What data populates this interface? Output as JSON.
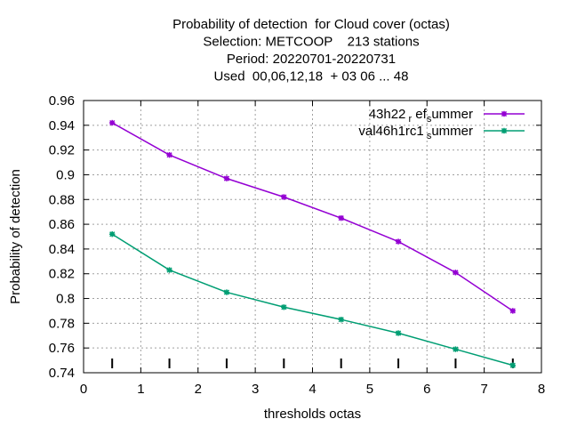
{
  "chart_data": {
    "type": "line",
    "title_lines": [
      "Probability of detection  for Cloud cover (octas)",
      "Selection: METCOOP    213 stations",
      "Period: 20220701-20220731",
      "Used  00,06,12,18  + 03 06 ... 48"
    ],
    "xlabel": "thresholds octas",
    "ylabel": "Probability of detection",
    "xlim": [
      0,
      8
    ],
    "ylim": [
      0.74,
      0.96
    ],
    "x_ticks": [
      0,
      1,
      2,
      3,
      4,
      5,
      6,
      7,
      8
    ],
    "y_ticks": [
      0.74,
      0.76,
      0.78,
      0.8,
      0.82,
      0.84,
      0.86,
      0.88,
      0.9,
      0.92,
      0.94,
      0.96
    ],
    "grid": true,
    "legend_position": "top-right",
    "x": [
      0.5,
      1.5,
      2.5,
      3.5,
      4.5,
      5.5,
      6.5,
      7.5
    ],
    "series": [
      {
        "name": "43h22_ref_summer",
        "legend_main": "43h22",
        "legend_sub1": "r",
        "legend_mid": "ef",
        "legend_sub2": "s",
        "legend_tail": "ummer",
        "color": "#9400d3",
        "values": [
          0.942,
          0.916,
          0.897,
          0.882,
          0.865,
          0.846,
          0.821,
          0.79
        ]
      },
      {
        "name": "val46h1rc1_summer",
        "legend_main": "val46h1rc1",
        "legend_sub1": "s",
        "legend_mid": "",
        "legend_sub2": "",
        "legend_tail": "ummer",
        "color": "#009e73",
        "values": [
          0.852,
          0.823,
          0.805,
          0.793,
          0.783,
          0.772,
          0.759,
          0.746
        ]
      }
    ],
    "impulse_marks_x": [
      0.5,
      1.5,
      2.5,
      3.5,
      4.5,
      5.5,
      6.5,
      7.5
    ]
  }
}
